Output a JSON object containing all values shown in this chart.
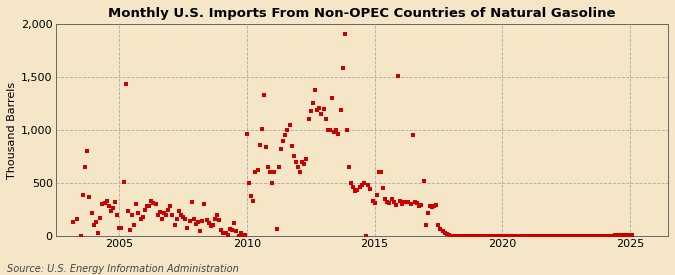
{
  "title": "Monthly U.S. Imports From Non-OPEC Countries of Natural Gasoline",
  "ylabel": "Thousand Barrels",
  "source": "Source: U.S. Energy Information Administration",
  "background_color": "#f5e6c8",
  "plot_background_color": "#f5e6c8",
  "marker_color": "#cc0000",
  "marker_size": 5,
  "ylim": [
    0,
    2000
  ],
  "yticks": [
    0,
    500,
    1000,
    1500,
    2000
  ],
  "xlim_start": 2002.5,
  "xlim_end": 2026.5,
  "xticks": [
    2005,
    2010,
    2015,
    2020,
    2025
  ],
  "data": [
    [
      2003.17,
      130
    ],
    [
      2003.33,
      160
    ],
    [
      2003.5,
      0
    ],
    [
      2003.58,
      390
    ],
    [
      2003.67,
      650
    ],
    [
      2003.75,
      800
    ],
    [
      2003.83,
      370
    ],
    [
      2003.92,
      220
    ],
    [
      2004.0,
      100
    ],
    [
      2004.08,
      130
    ],
    [
      2004.17,
      25
    ],
    [
      2004.25,
      170
    ],
    [
      2004.33,
      300
    ],
    [
      2004.42,
      310
    ],
    [
      2004.5,
      330
    ],
    [
      2004.58,
      280
    ],
    [
      2004.67,
      240
    ],
    [
      2004.75,
      260
    ],
    [
      2004.83,
      320
    ],
    [
      2004.92,
      200
    ],
    [
      2005.0,
      75
    ],
    [
      2005.08,
      80
    ],
    [
      2005.17,
      510
    ],
    [
      2005.25,
      1430
    ],
    [
      2005.33,
      240
    ],
    [
      2005.42,
      60
    ],
    [
      2005.5,
      200
    ],
    [
      2005.58,
      100
    ],
    [
      2005.67,
      300
    ],
    [
      2005.75,
      220
    ],
    [
      2005.83,
      160
    ],
    [
      2005.92,
      180
    ],
    [
      2006.0,
      250
    ],
    [
      2006.08,
      280
    ],
    [
      2006.17,
      280
    ],
    [
      2006.25,
      330
    ],
    [
      2006.33,
      310
    ],
    [
      2006.42,
      300
    ],
    [
      2006.5,
      200
    ],
    [
      2006.58,
      230
    ],
    [
      2006.67,
      160
    ],
    [
      2006.75,
      220
    ],
    [
      2006.83,
      200
    ],
    [
      2006.92,
      250
    ],
    [
      2007.0,
      280
    ],
    [
      2007.08,
      200
    ],
    [
      2007.17,
      100
    ],
    [
      2007.25,
      160
    ],
    [
      2007.33,
      240
    ],
    [
      2007.42,
      200
    ],
    [
      2007.5,
      180
    ],
    [
      2007.58,
      160
    ],
    [
      2007.67,
      80
    ],
    [
      2007.75,
      140
    ],
    [
      2007.83,
      320
    ],
    [
      2007.92,
      160
    ],
    [
      2008.0,
      110
    ],
    [
      2008.08,
      130
    ],
    [
      2008.17,
      45
    ],
    [
      2008.25,
      140
    ],
    [
      2008.33,
      300
    ],
    [
      2008.42,
      150
    ],
    [
      2008.5,
      120
    ],
    [
      2008.58,
      90
    ],
    [
      2008.67,
      100
    ],
    [
      2008.75,
      160
    ],
    [
      2008.83,
      200
    ],
    [
      2008.92,
      150
    ],
    [
      2009.0,
      60
    ],
    [
      2009.08,
      30
    ],
    [
      2009.17,
      30
    ],
    [
      2009.25,
      10
    ],
    [
      2009.33,
      70
    ],
    [
      2009.42,
      60
    ],
    [
      2009.5,
      120
    ],
    [
      2009.58,
      50
    ],
    [
      2009.67,
      0
    ],
    [
      2009.75,
      30
    ],
    [
      2009.83,
      0
    ],
    [
      2009.92,
      10
    ],
    [
      2010.0,
      960
    ],
    [
      2010.08,
      500
    ],
    [
      2010.17,
      380
    ],
    [
      2010.25,
      330
    ],
    [
      2010.33,
      600
    ],
    [
      2010.42,
      620
    ],
    [
      2010.5,
      860
    ],
    [
      2010.58,
      1010
    ],
    [
      2010.67,
      1330
    ],
    [
      2010.75,
      840
    ],
    [
      2010.83,
      650
    ],
    [
      2010.92,
      600
    ],
    [
      2011.0,
      500
    ],
    [
      2011.08,
      600
    ],
    [
      2011.17,
      70
    ],
    [
      2011.25,
      650
    ],
    [
      2011.33,
      820
    ],
    [
      2011.42,
      900
    ],
    [
      2011.5,
      950
    ],
    [
      2011.58,
      1000
    ],
    [
      2011.67,
      1050
    ],
    [
      2011.75,
      850
    ],
    [
      2011.83,
      750
    ],
    [
      2011.92,
      700
    ],
    [
      2012.0,
      650
    ],
    [
      2012.08,
      600
    ],
    [
      2012.17,
      700
    ],
    [
      2012.25,
      680
    ],
    [
      2012.33,
      730
    ],
    [
      2012.42,
      1100
    ],
    [
      2012.5,
      1180
    ],
    [
      2012.58,
      1250
    ],
    [
      2012.67,
      1380
    ],
    [
      2012.75,
      1190
    ],
    [
      2012.83,
      1210
    ],
    [
      2012.92,
      1150
    ],
    [
      2013.0,
      1200
    ],
    [
      2013.08,
      1100
    ],
    [
      2013.17,
      1000
    ],
    [
      2013.25,
      1000
    ],
    [
      2013.33,
      1300
    ],
    [
      2013.42,
      980
    ],
    [
      2013.5,
      1000
    ],
    [
      2013.58,
      960
    ],
    [
      2013.67,
      1190
    ],
    [
      2013.75,
      1580
    ],
    [
      2013.83,
      1900
    ],
    [
      2013.92,
      1000
    ],
    [
      2014.0,
      650
    ],
    [
      2014.08,
      500
    ],
    [
      2014.17,
      460
    ],
    [
      2014.25,
      420
    ],
    [
      2014.33,
      430
    ],
    [
      2014.42,
      460
    ],
    [
      2014.5,
      480
    ],
    [
      2014.58,
      500
    ],
    [
      2014.67,
      0
    ],
    [
      2014.75,
      480
    ],
    [
      2014.83,
      440
    ],
    [
      2014.92,
      330
    ],
    [
      2015.0,
      310
    ],
    [
      2015.08,
      390
    ],
    [
      2015.17,
      600
    ],
    [
      2015.25,
      600
    ],
    [
      2015.33,
      450
    ],
    [
      2015.42,
      350
    ],
    [
      2015.5,
      320
    ],
    [
      2015.58,
      310
    ],
    [
      2015.67,
      350
    ],
    [
      2015.75,
      320
    ],
    [
      2015.83,
      290
    ],
    [
      2015.92,
      1510
    ],
    [
      2016.0,
      330
    ],
    [
      2016.08,
      300
    ],
    [
      2016.17,
      320
    ],
    [
      2016.25,
      320
    ],
    [
      2016.33,
      320
    ],
    [
      2016.42,
      300
    ],
    [
      2016.5,
      950
    ],
    [
      2016.58,
      320
    ],
    [
      2016.67,
      310
    ],
    [
      2016.75,
      280
    ],
    [
      2016.83,
      290
    ],
    [
      2016.92,
      520
    ],
    [
      2017.0,
      100
    ],
    [
      2017.08,
      220
    ],
    [
      2017.17,
      280
    ],
    [
      2017.25,
      270
    ],
    [
      2017.33,
      280
    ],
    [
      2017.42,
      290
    ],
    [
      2017.5,
      100
    ],
    [
      2017.58,
      70
    ],
    [
      2017.67,
      50
    ],
    [
      2017.75,
      30
    ],
    [
      2017.83,
      20
    ],
    [
      2017.92,
      10
    ],
    [
      2018.0,
      0
    ],
    [
      2018.08,
      0
    ],
    [
      2018.17,
      0
    ],
    [
      2018.25,
      0
    ],
    [
      2018.33,
      0
    ],
    [
      2018.42,
      0
    ],
    [
      2018.5,
      0
    ],
    [
      2018.58,
      0
    ],
    [
      2018.67,
      0
    ],
    [
      2018.75,
      0
    ],
    [
      2018.83,
      0
    ],
    [
      2018.92,
      0
    ],
    [
      2019.0,
      0
    ],
    [
      2019.08,
      0
    ],
    [
      2019.17,
      0
    ],
    [
      2019.25,
      0
    ],
    [
      2019.33,
      0
    ],
    [
      2019.42,
      0
    ],
    [
      2019.5,
      0
    ],
    [
      2019.58,
      0
    ],
    [
      2019.67,
      0
    ],
    [
      2019.75,
      0
    ],
    [
      2019.83,
      0
    ],
    [
      2019.92,
      0
    ],
    [
      2020.0,
      0
    ],
    [
      2020.08,
      0
    ],
    [
      2020.17,
      0
    ],
    [
      2020.25,
      0
    ],
    [
      2020.33,
      0
    ],
    [
      2020.42,
      0
    ],
    [
      2020.5,
      0
    ],
    [
      2020.58,
      0
    ],
    [
      2020.67,
      0
    ],
    [
      2020.75,
      0
    ],
    [
      2020.83,
      0
    ],
    [
      2020.92,
      0
    ],
    [
      2021.0,
      0
    ],
    [
      2021.08,
      0
    ],
    [
      2021.17,
      0
    ],
    [
      2021.25,
      0
    ],
    [
      2021.33,
      0
    ],
    [
      2021.42,
      0
    ],
    [
      2021.5,
      0
    ],
    [
      2021.58,
      0
    ],
    [
      2021.67,
      0
    ],
    [
      2021.75,
      0
    ],
    [
      2021.83,
      0
    ],
    [
      2021.92,
      0
    ],
    [
      2022.0,
      0
    ],
    [
      2022.08,
      0
    ],
    [
      2022.17,
      0
    ],
    [
      2022.25,
      0
    ],
    [
      2022.33,
      0
    ],
    [
      2022.42,
      0
    ],
    [
      2022.5,
      0
    ],
    [
      2022.58,
      0
    ],
    [
      2022.67,
      0
    ],
    [
      2022.75,
      0
    ],
    [
      2022.83,
      0
    ],
    [
      2022.92,
      0
    ],
    [
      2023.0,
      0
    ],
    [
      2023.08,
      0
    ],
    [
      2023.17,
      0
    ],
    [
      2023.25,
      0
    ],
    [
      2023.33,
      0
    ],
    [
      2023.42,
      0
    ],
    [
      2023.5,
      0
    ],
    [
      2023.58,
      0
    ],
    [
      2023.67,
      0
    ],
    [
      2023.75,
      0
    ],
    [
      2023.83,
      0
    ],
    [
      2023.92,
      0
    ],
    [
      2024.0,
      0
    ],
    [
      2024.08,
      0
    ],
    [
      2024.17,
      0
    ],
    [
      2024.25,
      0
    ],
    [
      2024.33,
      0
    ],
    [
      2024.42,
      10
    ],
    [
      2024.5,
      10
    ],
    [
      2024.58,
      10
    ],
    [
      2024.67,
      10
    ],
    [
      2024.75,
      10
    ],
    [
      2024.83,
      10
    ],
    [
      2024.92,
      10
    ],
    [
      2025.0,
      10
    ],
    [
      2025.08,
      10
    ]
  ]
}
